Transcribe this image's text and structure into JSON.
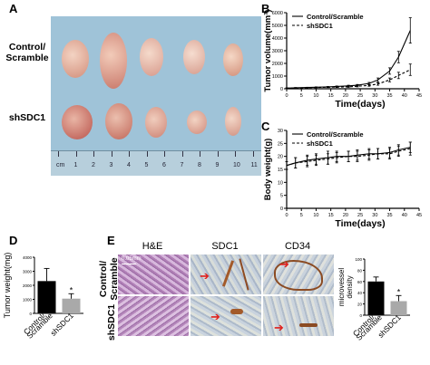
{
  "panels": {
    "A": {
      "label": "A",
      "row_labels": [
        "Control/\nScramble",
        "shSDC1"
      ],
      "ruler_numbers": [
        "cm",
        "1",
        "2",
        "3",
        "4",
        "5",
        "6",
        "7",
        "8",
        "9",
        "10",
        "11"
      ]
    },
    "B": {
      "label": "B"
    },
    "C": {
      "label": "C"
    },
    "D": {
      "label": "D"
    },
    "E": {
      "label": "E",
      "columns": [
        "H&E",
        "SDC1",
        "CD34"
      ],
      "row_labels": [
        "Control/\nScramble",
        "shSDC1"
      ],
      "scale_text": "0.05mm"
    }
  },
  "chart_data": [
    {
      "id": "B",
      "type": "line",
      "xlabel": "Time(days)",
      "ylabel": "Tumor volume(mm³)",
      "x_ticks": [
        0,
        5,
        10,
        15,
        20,
        25,
        30,
        35,
        40,
        45
      ],
      "y_ticks": [
        0,
        1000,
        2000,
        3000,
        4000,
        5000,
        6000
      ],
      "xlim": [
        0,
        45
      ],
      "ylim": [
        0,
        6000
      ],
      "legend_position": "top-left",
      "series": [
        {
          "name": "Control/Scramble",
          "style": "solid",
          "x": [
            0,
            3,
            7,
            10,
            14,
            17,
            21,
            24,
            28,
            31,
            35,
            38,
            42
          ],
          "y": [
            50,
            80,
            100,
            120,
            150,
            180,
            230,
            280,
            420,
            700,
            1400,
            2500,
            4600
          ],
          "err": [
            20,
            20,
            20,
            30,
            30,
            40,
            50,
            60,
            80,
            150,
            250,
            450,
            1000
          ]
        },
        {
          "name": "shSDC1",
          "style": "dashed",
          "x": [
            0,
            3,
            7,
            10,
            14,
            17,
            21,
            24,
            28,
            31,
            35,
            38,
            42
          ],
          "y": [
            40,
            60,
            80,
            100,
            120,
            130,
            150,
            200,
            260,
            380,
            700,
            1050,
            1500
          ],
          "err": [
            15,
            15,
            20,
            20,
            25,
            30,
            40,
            50,
            60,
            100,
            150,
            250,
            450
          ]
        }
      ]
    },
    {
      "id": "C",
      "type": "line",
      "xlabel": "Time(days)",
      "ylabel": "Body weight(g)",
      "x_ticks": [
        0,
        5,
        10,
        15,
        20,
        25,
        30,
        35,
        40,
        45
      ],
      "y_ticks": [
        0,
        5,
        10,
        15,
        20,
        25,
        30
      ],
      "xlim": [
        0,
        45
      ],
      "ylim": [
        0,
        30
      ],
      "legend_position": "top-left",
      "series": [
        {
          "name": "Control/Scramble",
          "style": "solid",
          "x": [
            0,
            3,
            7,
            10,
            14,
            17,
            21,
            24,
            28,
            31,
            35,
            38,
            42
          ],
          "y": [
            16.5,
            17.5,
            18.5,
            19,
            19.5,
            20,
            20,
            20.5,
            21,
            21,
            21.5,
            22.5,
            23.5
          ],
          "err": [
            1.5,
            2,
            2,
            2,
            2.5,
            2,
            2,
            2,
            2,
            2,
            2,
            2,
            2
          ]
        },
        {
          "name": "shSDC1",
          "style": "dashed",
          "x": [
            0,
            3,
            7,
            10,
            14,
            17,
            21,
            24,
            28,
            31,
            35,
            38,
            42
          ],
          "y": [
            16.5,
            17.5,
            18,
            18.5,
            19,
            19.5,
            20,
            20,
            20.5,
            21,
            21,
            22,
            23
          ],
          "err": [
            1.5,
            2,
            2,
            2,
            2,
            2,
            2,
            2,
            2,
            2,
            2,
            2,
            2.5
          ]
        }
      ]
    },
    {
      "id": "D",
      "type": "bar",
      "ylabel": "Tumor weight(mg)",
      "categories": [
        "Control/\nScramble",
        "shSDC1"
      ],
      "values": [
        2300,
        1050
      ],
      "errors": [
        900,
        350
      ],
      "colors": [
        "#000000",
        "#a9a9a9"
      ],
      "y_ticks": [
        0,
        1000,
        2000,
        3000,
        4000
      ],
      "ylim": [
        0,
        4000
      ],
      "annotations": [
        "*"
      ]
    },
    {
      "id": "E",
      "type": "bar",
      "ylabel": "microvessel\ndensity",
      "categories": [
        "Control/\nScramble",
        "shSDC1"
      ],
      "values": [
        60,
        25
      ],
      "errors": [
        8,
        10
      ],
      "colors": [
        "#000000",
        "#a9a9a9"
      ],
      "y_ticks": [
        0,
        20,
        40,
        60,
        80,
        100
      ],
      "ylim": [
        0,
        100
      ],
      "annotations": [
        "*"
      ]
    }
  ]
}
